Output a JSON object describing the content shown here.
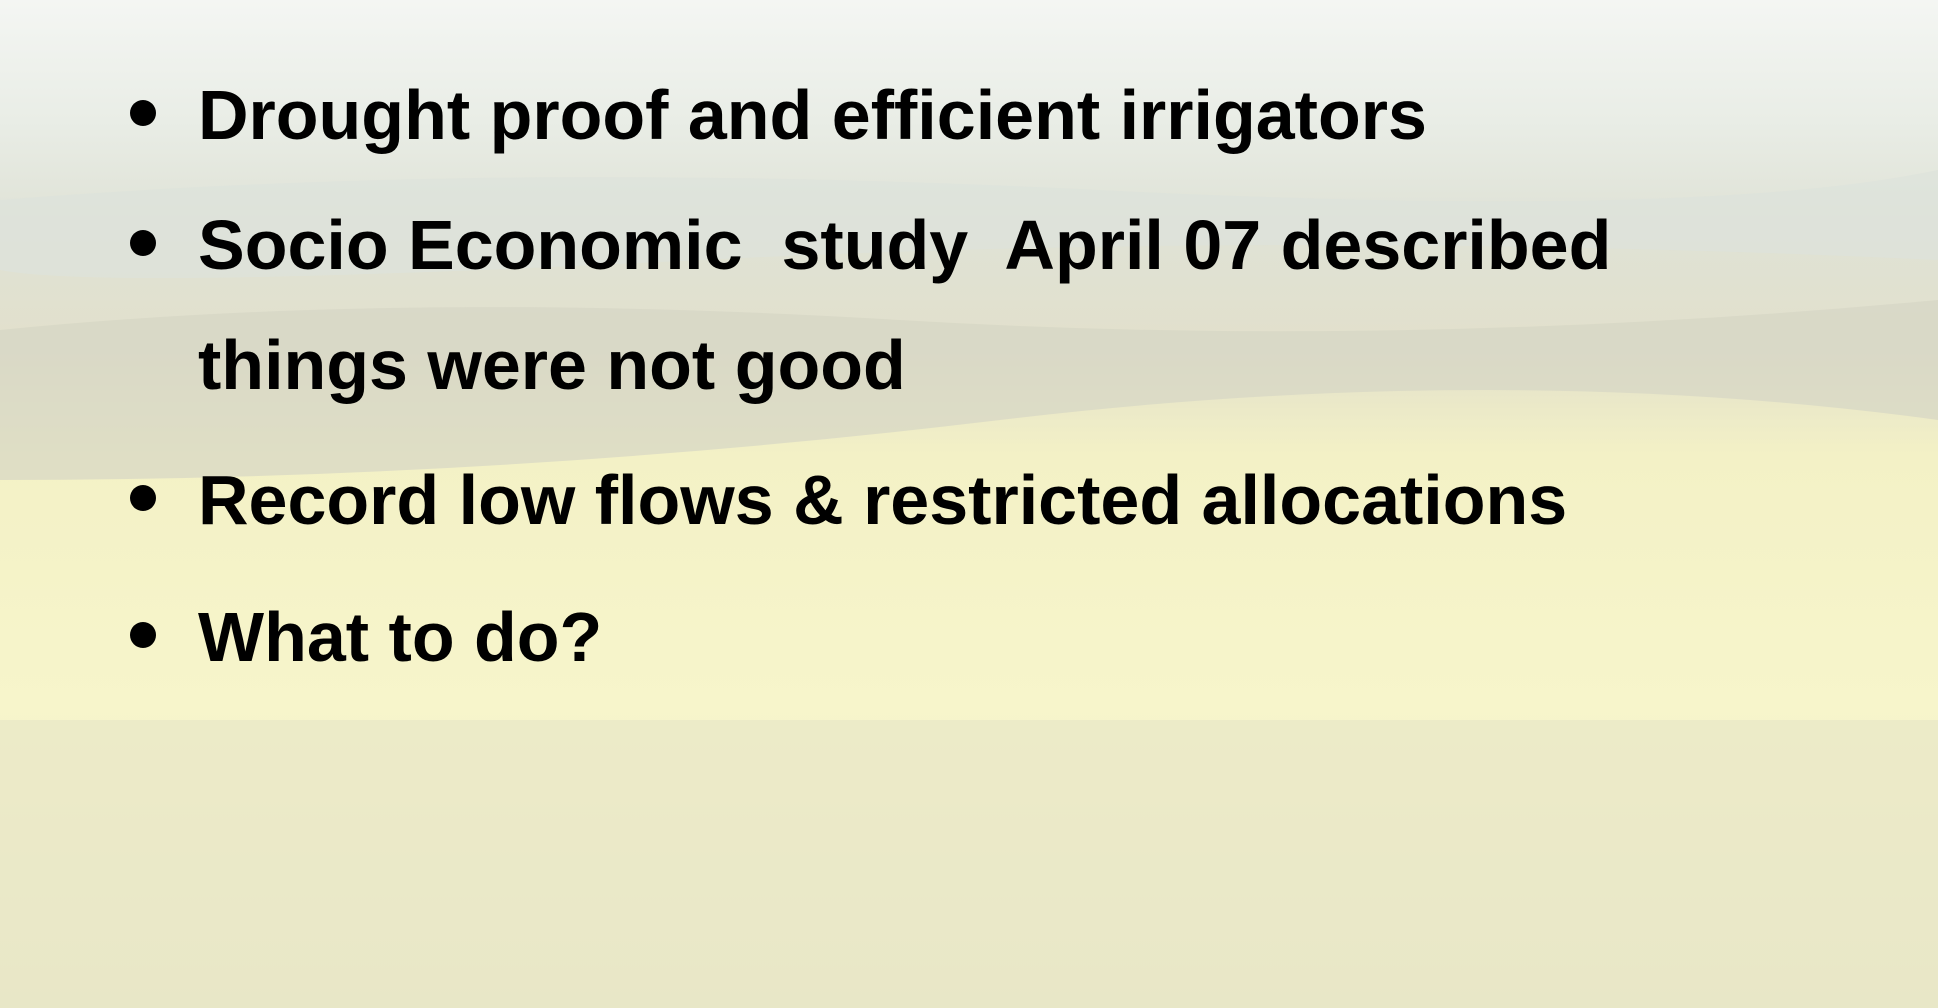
{
  "bullets": [
    {
      "lines": [
        "Drought proof and efficient irrigators"
      ]
    },
    {
      "lines": [
        "Socio Economic  study  April 07 described",
        "things were not good"
      ]
    },
    {
      "lines": [
        "Record low flows & restricted allocations"
      ]
    },
    {
      "lines": [
        "What to do?"
      ]
    }
  ]
}
